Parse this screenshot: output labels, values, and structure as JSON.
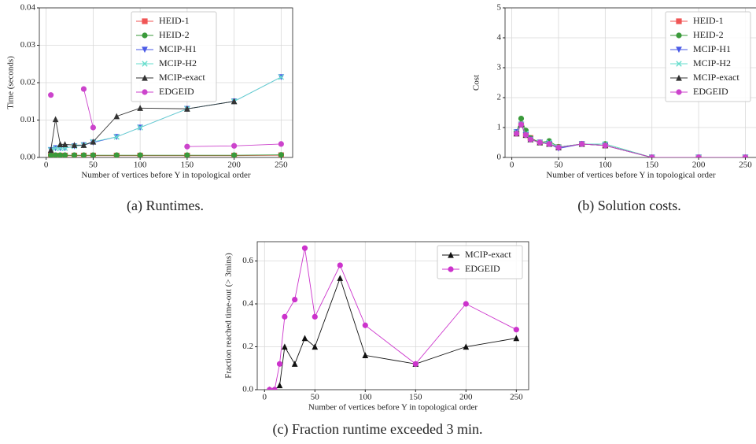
{
  "chart_data": [
    {
      "type": "line",
      "caption": "(a) Runtimes.",
      "xlabel": "Number of vertices before Y in topological order",
      "ylabel": "Time (seconds)",
      "x": [
        5,
        10,
        15,
        20,
        30,
        40,
        50,
        75,
        100,
        150,
        200,
        250
      ],
      "xlim": [
        -7.25,
        262.25
      ],
      "xticks": [
        0,
        50,
        100,
        150,
        200,
        250
      ],
      "ylim": [
        0,
        0.04
      ],
      "yticks": [
        {
          "value": 0,
          "label": "0.00"
        },
        {
          "value": 0.01,
          "label": "0.01"
        },
        {
          "value": 0.02,
          "label": "0.02"
        },
        {
          "value": 0.03,
          "label": "0.03"
        },
        {
          "value": 0.04,
          "label": "0.04"
        }
      ],
      "grid": true,
      "legend": "upper center",
      "series": [
        {
          "name": "HEID-1",
          "color": "#f05555",
          "marker": "square",
          "values": [
            0.0005,
            0.0005,
            0.0005,
            0.0005,
            0.0005,
            0.0005,
            0.0005,
            0.0005,
            0.0005,
            0.0005,
            0.0005,
            0.0006
          ]
        },
        {
          "name": "HEID-2",
          "color": "#3a9a3a",
          "marker": "circle",
          "values": [
            0.0006,
            0.0006,
            0.0006,
            0.0006,
            0.0006,
            0.0006,
            0.0006,
            0.0006,
            0.0006,
            0.0006,
            0.0006,
            0.0007
          ]
        },
        {
          "name": "MCIP-H1",
          "color": "#4a5ae6",
          "marker": "triangle-down",
          "values": [
            0.002,
            0.0025,
            0.0025,
            0.0025,
            0.003,
            0.0033,
            0.004,
            0.0055,
            0.008,
            0.013,
            0.015,
            0.0215
          ]
        },
        {
          "name": "MCIP-H2",
          "color": "#66ddcc",
          "marker": "x",
          "values": [
            0.002,
            0.0025,
            0.0025,
            0.0025,
            0.003,
            0.0033,
            0.0042,
            0.0055,
            0.008,
            0.013,
            0.015,
            0.0215
          ]
        },
        {
          "name": "MCIP-exact",
          "color": "#333333",
          "marker": "triangle-up",
          "values": [
            0.002,
            0.0102,
            0.0035,
            0.0035,
            0.0033,
            0.0033,
            0.0042,
            0.011,
            0.0132,
            0.013,
            0.015,
            null
          ]
        },
        {
          "name": "EDGEID",
          "color": "#cc44cc",
          "marker": "circle",
          "values": [
            0.0167,
            null,
            null,
            null,
            null,
            0.0183,
            0.008,
            null,
            null,
            0.0029,
            0.0031,
            0.0036
          ]
        }
      ]
    },
    {
      "type": "line",
      "caption": "(b) Solution costs.",
      "xlabel": "Number of vertices before Y in topological order",
      "ylabel": "Cost",
      "x": [
        5,
        10,
        15,
        20,
        30,
        40,
        50,
        75,
        100,
        150,
        200,
        250
      ],
      "xlim": [
        -7.25,
        262.25
      ],
      "xticks": [
        0,
        50,
        100,
        150,
        200,
        250
      ],
      "ylim": [
        0,
        5
      ],
      "yticks": [
        0,
        1,
        2,
        3,
        4,
        5
      ],
      "grid": true,
      "legend": "upper right",
      "series": [
        {
          "name": "HEID-1",
          "color": "#f05555",
          "marker": "square",
          "values": [
            0.8,
            1.1,
            0.75,
            0.65,
            0.5,
            0.45,
            0.35,
            0.45,
            0.4,
            0,
            0,
            0
          ]
        },
        {
          "name": "HEID-2",
          "color": "#3a9a3a",
          "marker": "circle",
          "values": [
            0.85,
            1.3,
            0.9,
            0.65,
            0.5,
            0.55,
            0.35,
            0.45,
            0.45,
            0,
            0,
            0
          ]
        },
        {
          "name": "MCIP-H1",
          "color": "#4a5ae6",
          "marker": "triangle-down",
          "values": [
            0.85,
            1.1,
            0.75,
            0.6,
            0.5,
            0.45,
            0.3,
            0.45,
            0.4,
            0,
            0,
            0
          ]
        },
        {
          "name": "MCIP-H2",
          "color": "#66ddcc",
          "marker": "x",
          "values": [
            0.85,
            1.1,
            0.8,
            0.6,
            0.5,
            0.5,
            0.35,
            0.45,
            0.45,
            0,
            0,
            0
          ]
        },
        {
          "name": "MCIP-exact",
          "color": "#333333",
          "marker": "triangle-up",
          "values": [
            0.8,
            1.1,
            0.75,
            0.6,
            0.5,
            0.45,
            0.33,
            0.45,
            0.4,
            0,
            0,
            0
          ]
        },
        {
          "name": "EDGEID",
          "color": "#cc44cc",
          "marker": "circle",
          "values": [
            0.8,
            1.1,
            0.75,
            0.6,
            0.5,
            0.45,
            0.33,
            0.45,
            0.4,
            0,
            0,
            0
          ]
        }
      ]
    },
    {
      "type": "line",
      "caption": "(c) Fraction runtime exceeded 3 min.",
      "xlabel": "Number of vertices before Y in topological order",
      "ylabel": "Fraction reached time-out (> 3mins)",
      "x": [
        5,
        10,
        15,
        20,
        30,
        40,
        50,
        75,
        100,
        150,
        200,
        250
      ],
      "xlim": [
        -7.25,
        262.25
      ],
      "xticks": [
        0,
        50,
        100,
        150,
        200,
        250
      ],
      "ylim": [
        0,
        0.69
      ],
      "yticks": [
        {
          "value": 0,
          "label": "0.0"
        },
        {
          "value": 0.2,
          "label": "0.2"
        },
        {
          "value": 0.4,
          "label": "0.4"
        },
        {
          "value": 0.6,
          "label": "0.6"
        }
      ],
      "grid": true,
      "legend": "upper right",
      "series": [
        {
          "name": "MCIP-exact",
          "color": "#111111",
          "marker": "triangle-up",
          "values": [
            0,
            0,
            0.02,
            0.2,
            0.12,
            0.24,
            0.2,
            0.52,
            0.16,
            0.12,
            0.2,
            0.24
          ]
        },
        {
          "name": "EDGEID",
          "color": "#cc33cc",
          "marker": "circle",
          "values": [
            0,
            0,
            0.12,
            0.34,
            0.42,
            0.66,
            0.34,
            0.58,
            0.3,
            0.12,
            0.4,
            0.28
          ]
        }
      ]
    }
  ]
}
